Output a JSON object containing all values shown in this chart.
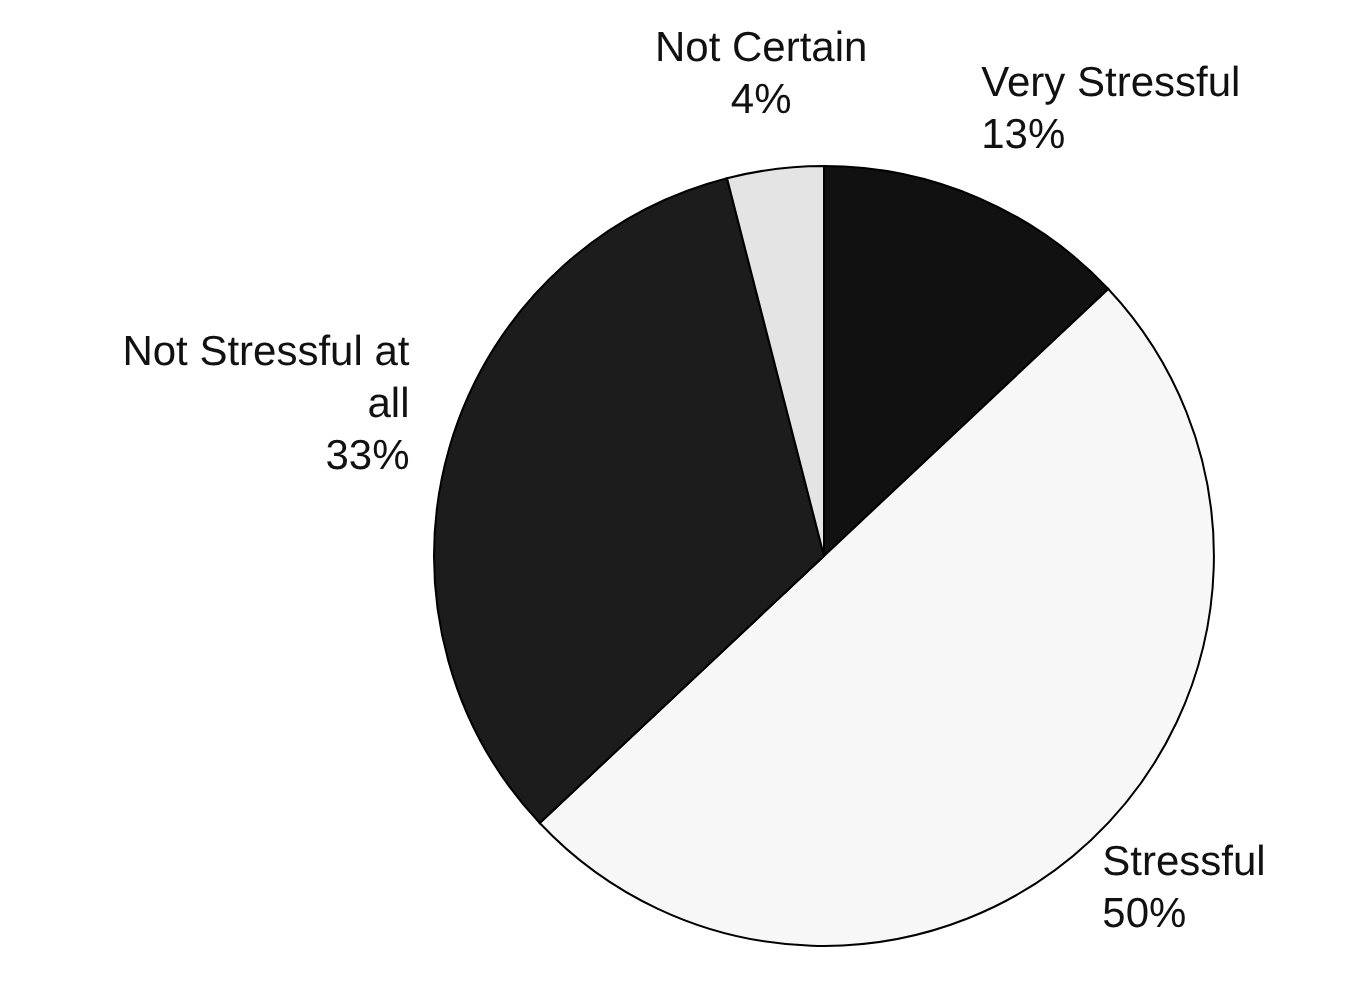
{
  "chart_data": {
    "type": "pie",
    "categories": [
      "Very Stressful",
      "Stressful",
      "Not Stressful at all",
      "Not Certain"
    ],
    "values": [
      13,
      50,
      33,
      4
    ],
    "value_labels": [
      "13%",
      "50%",
      "33%",
      "4%"
    ],
    "colors": [
      "#111111",
      "#f7f7f7",
      "#1c1c1c",
      "#e4e4e4"
    ],
    "legend": false
  }
}
